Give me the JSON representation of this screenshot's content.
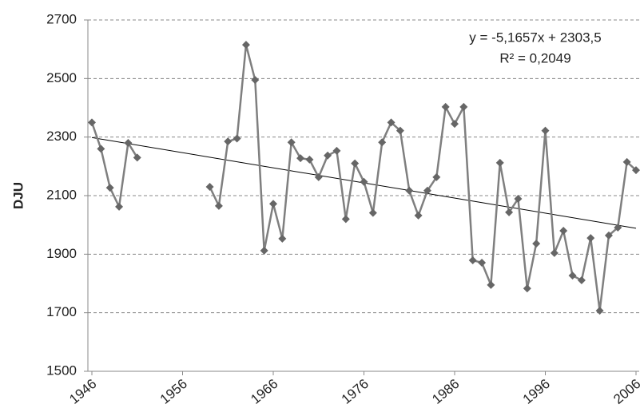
{
  "chart_data": {
    "type": "line",
    "y_label": "DJU",
    "x": [
      1946,
      1947,
      1948,
      1949,
      1950,
      1951,
      1952,
      1953,
      1954,
      1955,
      1956,
      1957,
      1958,
      1959,
      1960,
      1961,
      1962,
      1963,
      1964,
      1965,
      1966,
      1967,
      1968,
      1969,
      1970,
      1971,
      1972,
      1973,
      1974,
      1975,
      1976,
      1977,
      1978,
      1979,
      1980,
      1981,
      1982,
      1983,
      1984,
      1985,
      1986,
      1987,
      1988,
      1989,
      1990,
      1991,
      1992,
      1993,
      1994,
      1995,
      1996,
      1997,
      1998,
      1999,
      2000,
      2001,
      2002,
      2003,
      2004,
      2005,
      2006
    ],
    "series": [
      {
        "name": "DJU",
        "color": "#7f7f7f",
        "marker_color": "#666666",
        "values": [
          2350,
          2260,
          2127,
          2062,
          2280,
          2230,
          null,
          null,
          null,
          null,
          null,
          null,
          null,
          2130,
          2065,
          2285,
          2295,
          2615,
          2495,
          1912,
          2072,
          1953,
          2282,
          2228,
          2223,
          2163,
          2237,
          2253,
          2020,
          2210,
          2147,
          2041,
          2282,
          2350,
          2322,
          2117,
          2032,
          2117,
          2163,
          2403,
          2345,
          2403,
          1879,
          1871,
          1795,
          2212,
          2043,
          2089,
          1783,
          1936,
          2322,
          1904,
          1980,
          1827,
          1811,
          1955,
          1707,
          1964,
          1991,
          2215,
          2187
        ]
      }
    ],
    "trendline": {
      "label": "y = -5,1657x + 2303,5",
      "r2_label": "R² = 0,2049",
      "slope": -5.1657,
      "intercept": 2303.5,
      "color": "#000000"
    },
    "xlim": [
      1946,
      2006
    ],
    "xticks": [
      1946,
      1956,
      1966,
      1976,
      1986,
      1996,
      2006
    ],
    "ylim": [
      1500,
      2700
    ],
    "yticks": [
      1500,
      1700,
      1900,
      2100,
      2300,
      2500,
      2700
    ],
    "grid": true
  }
}
